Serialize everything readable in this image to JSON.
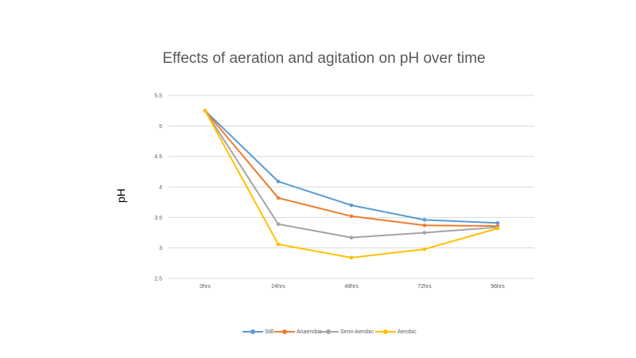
{
  "chart_data": {
    "type": "line",
    "title": "Effects of aeration and agitation on pH over time",
    "xlabel": "",
    "ylabel": "pH",
    "categories": [
      "0hrs",
      "24hrs",
      "48hrs",
      "72hrs",
      "96hrs"
    ],
    "ylim": [
      2.5,
      5.5
    ],
    "yticks": [
      "5.5",
      "5",
      "4.5",
      "4",
      "3.5",
      "3",
      "2.5"
    ],
    "grid": true,
    "legend_position": "bottom",
    "series": [
      {
        "name": "Still",
        "color": "#5b9bd5",
        "values": [
          5.25,
          4.09,
          3.7,
          3.46,
          3.41
        ]
      },
      {
        "name": "Anaerobic",
        "color": "#ed7d31",
        "values": [
          5.25,
          3.82,
          3.52,
          3.37,
          3.36
        ]
      },
      {
        "name": "Semi-Aerobic",
        "color": "#a5a5a5",
        "values": [
          5.25,
          3.39,
          3.17,
          3.25,
          3.34
        ]
      },
      {
        "name": "Aerobic",
        "color": "#ffc000",
        "values": [
          5.25,
          3.06,
          2.84,
          2.98,
          3.32
        ]
      }
    ]
  }
}
